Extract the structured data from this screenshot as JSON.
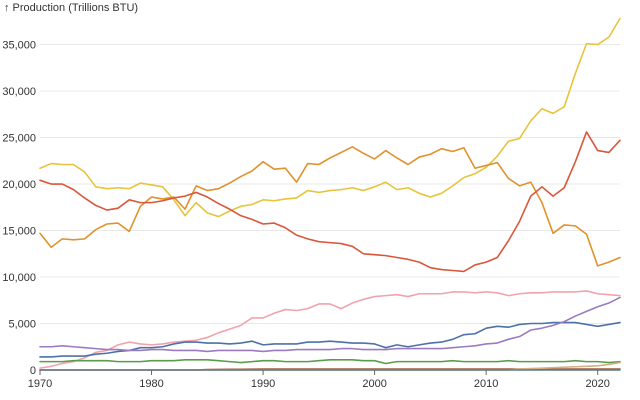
{
  "chart_data": {
    "type": "line",
    "ylabel": "↑ Production (Trillions BTU)",
    "xlim": [
      1970,
      2022
    ],
    "ylim": [
      0,
      38500
    ],
    "x_ticks": [
      1970,
      1980,
      1990,
      2000,
      2010,
      2020
    ],
    "x_tick_labels": [
      "1970",
      "1980",
      "1990",
      "2000",
      "2010",
      "2020"
    ],
    "y_ticks": [
      0,
      5000,
      10000,
      15000,
      20000,
      25000,
      30000,
      35000
    ],
    "y_tick_labels": [
      "0",
      "5,000",
      "10,000",
      "15,000",
      "20,000",
      "25,000",
      "30,000",
      "35,000"
    ],
    "grid": "horizontal",
    "years": [
      1970,
      1971,
      1972,
      1973,
      1974,
      1975,
      1976,
      1977,
      1978,
      1979,
      1980,
      1981,
      1982,
      1983,
      1984,
      1985,
      1986,
      1987,
      1988,
      1989,
      1990,
      1991,
      1992,
      1993,
      1994,
      1995,
      1996,
      1997,
      1998,
      1999,
      2000,
      2001,
      2002,
      2003,
      2004,
      2005,
      2006,
      2007,
      2008,
      2009,
      2010,
      2011,
      2012,
      2013,
      2014,
      2015,
      2016,
      2017,
      2018,
      2019,
      2020,
      2021,
      2022
    ],
    "series": [
      {
        "color": "#e8c33c",
        "values": [
          21700,
          22200,
          22100,
          22100,
          21300,
          19700,
          19500,
          19600,
          19500,
          20100,
          19900,
          19700,
          18300,
          16600,
          18000,
          16900,
          16500,
          17100,
          17600,
          17800,
          18300,
          18200,
          18400,
          18500,
          19300,
          19100,
          19300,
          19400,
          19600,
          19300,
          19700,
          20200,
          19400,
          19600,
          19000,
          18600,
          19000,
          19800,
          20700,
          21100,
          21800,
          23000,
          24600,
          24900,
          26800,
          28100,
          27600,
          28300,
          31900,
          35100,
          35000,
          35800,
          37800
        ]
      },
      {
        "color": "#e0922c",
        "values": [
          14700,
          13200,
          14100,
          14000,
          14100,
          15100,
          15700,
          15800,
          14900,
          17600,
          18600,
          18400,
          18600,
          17300,
          19800,
          19300,
          19500,
          20100,
          20800,
          21400,
          22400,
          21600,
          21700,
          20200,
          22200,
          22100,
          22800,
          23400,
          24000,
          23300,
          22700,
          23600,
          22800,
          22100,
          22900,
          23200,
          23800,
          23500,
          23900,
          21700,
          22000,
          22300,
          20600,
          19800,
          20200,
          18000,
          14700,
          15600,
          15500,
          14600,
          11200,
          11600,
          12100
        ]
      },
      {
        "color": "#d9573a",
        "values": [
          20400,
          20000,
          20000,
          19400,
          18500,
          17700,
          17200,
          17400,
          18300,
          18000,
          18000,
          18200,
          18500,
          18700,
          19100,
          18600,
          17900,
          17300,
          16600,
          16200,
          15700,
          15800,
          15300,
          14500,
          14100,
          13800,
          13700,
          13600,
          13300,
          12500,
          12400,
          12300,
          12100,
          11900,
          11600,
          11000,
          10800,
          10700,
          10600,
          11300,
          11600,
          12100,
          13900,
          16000,
          18700,
          19700,
          18700,
          19600,
          22400,
          25600,
          23600,
          23400,
          24700
        ]
      },
      {
        "color": "#f0a3ac",
        "values": [
          200,
          400,
          700,
          900,
          1300,
          1900,
          2100,
          2700,
          3000,
          2800,
          2700,
          2800,
          3000,
          3100,
          3200,
          3500,
          4000,
          4400,
          4800,
          5600,
          5600,
          6100,
          6500,
          6400,
          6600,
          7100,
          7100,
          6600,
          7200,
          7600,
          7900,
          8000,
          8100,
          7900,
          8200,
          8200,
          8200,
          8400,
          8400,
          8300,
          8400,
          8300,
          8000,
          8200,
          8300,
          8300,
          8400,
          8400,
          8400,
          8500,
          8200,
          8100,
          8000
        ]
      },
      {
        "color": "#4c72a8",
        "values": [
          1400,
          1400,
          1500,
          1500,
          1500,
          1700,
          1800,
          2000,
          2100,
          2400,
          2400,
          2500,
          2800,
          3000,
          3000,
          2900,
          2900,
          2800,
          2900,
          3100,
          2700,
          2800,
          2800,
          2800,
          3000,
          3000,
          3100,
          3000,
          2900,
          2900,
          2800,
          2400,
          2700,
          2500,
          2700,
          2900,
          3000,
          3300,
          3800,
          3900,
          4500,
          4700,
          4600,
          4900,
          5000,
          5000,
          5100,
          5100,
          5100,
          4900,
          4700,
          4900,
          5100
        ]
      },
      {
        "color": "#9b7bc0",
        "values": [
          2500,
          2500,
          2600,
          2500,
          2400,
          2300,
          2200,
          2200,
          2100,
          2100,
          2200,
          2200,
          2100,
          2100,
          2100,
          2000,
          2100,
          2100,
          2100,
          2100,
          2000,
          2100,
          2100,
          2200,
          2200,
          2200,
          2200,
          2300,
          2300,
          2200,
          2200,
          2200,
          2300,
          2300,
          2300,
          2300,
          2300,
          2400,
          2500,
          2600,
          2800,
          2900,
          3300,
          3600,
          4300,
          4500,
          4800,
          5200,
          5800,
          6300,
          6800,
          7200,
          7800
        ]
      },
      {
        "color": "#5a9c4c",
        "values": [
          900,
          900,
          900,
          1000,
          1000,
          1000,
          1000,
          900,
          900,
          900,
          1000,
          1000,
          1000,
          1100,
          1100,
          1100,
          1000,
          900,
          800,
          900,
          1000,
          1000,
          900,
          900,
          900,
          1000,
          1100,
          1100,
          1100,
          1000,
          1000,
          700,
          900,
          900,
          900,
          900,
          900,
          1000,
          900,
          900,
          900,
          900,
          1000,
          900,
          900,
          900,
          900,
          900,
          1000,
          900,
          900,
          800,
          900
        ]
      },
      {
        "color": "#9a6040",
        "values": [
          0,
          0,
          0,
          0,
          0,
          0,
          0,
          0,
          0,
          0,
          0,
          0,
          0,
          0,
          0,
          50,
          60,
          70,
          80,
          90,
          100,
          100,
          100,
          100,
          100,
          100,
          100,
          100,
          100,
          100,
          100,
          100,
          100,
          100,
          100,
          100,
          100,
          100,
          100,
          100,
          100,
          100,
          100,
          100,
          100,
          100,
          100,
          100,
          100,
          100,
          100,
          100,
          100
        ]
      },
      {
        "color": "#d3b088",
        "values": [
          0,
          0,
          0,
          0,
          0,
          0,
          0,
          0,
          0,
          0,
          0,
          0,
          0,
          0,
          0,
          0,
          0,
          0,
          0,
          0,
          0,
          0,
          0,
          0,
          0,
          0,
          0,
          0,
          0,
          0,
          0,
          0,
          0,
          0,
          0,
          0,
          0,
          0,
          0,
          0,
          0,
          0,
          0,
          100,
          150,
          200,
          250,
          300,
          350,
          400,
          450,
          600,
          800
        ]
      },
      {
        "color": "#4aa3c8",
        "values": [
          0,
          0,
          0,
          0,
          0,
          0,
          0,
          0,
          0,
          0,
          0,
          0,
          0,
          0,
          0,
          0,
          0,
          0,
          0,
          0,
          0,
          0,
          0,
          0,
          0,
          0,
          0,
          0,
          0,
          0,
          0,
          0,
          0,
          0,
          0,
          0,
          0,
          0,
          0,
          0,
          0,
          0,
          0,
          0,
          0,
          0,
          0,
          0,
          0,
          0,
          0,
          0,
          0
        ]
      }
    ]
  }
}
